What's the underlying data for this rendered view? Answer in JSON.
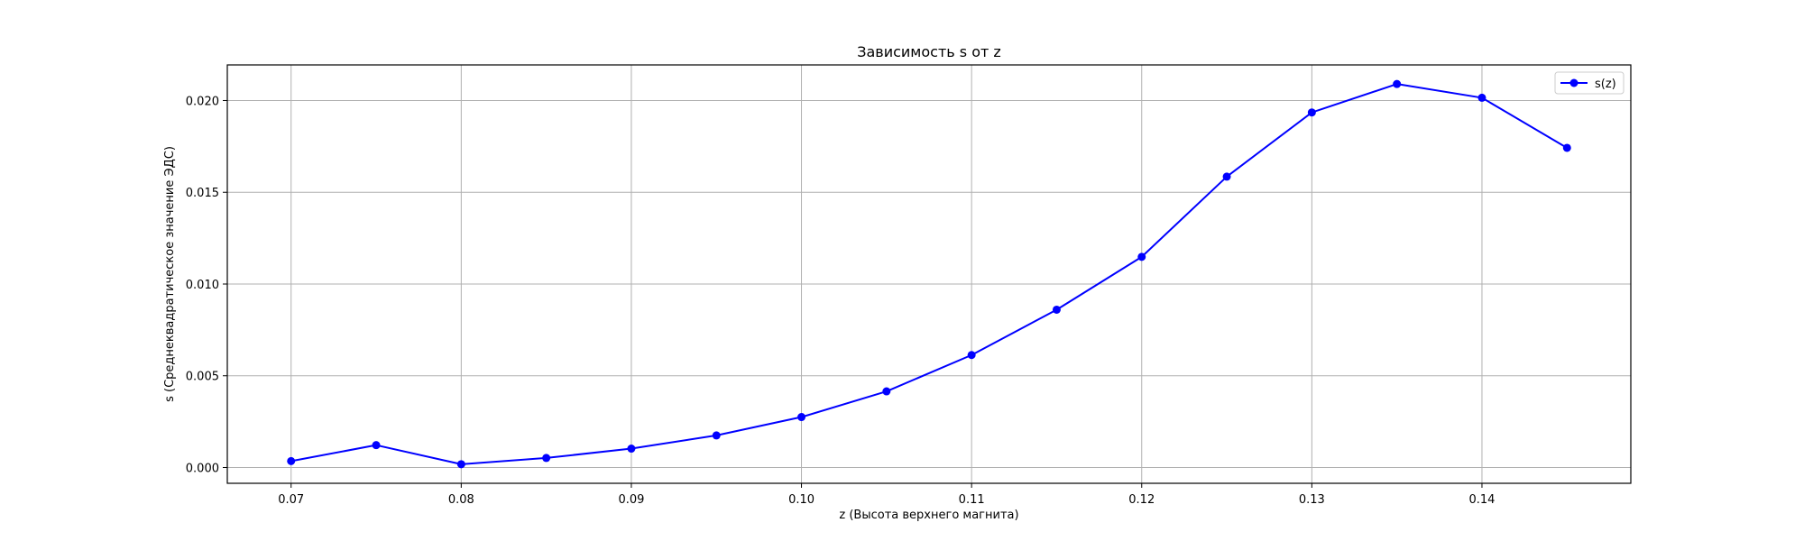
{
  "chart_data": {
    "type": "line",
    "title": "Зависимость s от z",
    "xlabel": "z (Высота верхнего магнита)",
    "ylabel": "s (Среднеквадратическое значение ЭДС)",
    "x": [
      0.07,
      0.075,
      0.08,
      0.085,
      0.09,
      0.095,
      0.1,
      0.105,
      0.11,
      0.115,
      0.12,
      0.125,
      0.13,
      0.135,
      0.14,
      0.145
    ],
    "series": [
      {
        "name": "s(z)",
        "color": "#0000ff",
        "marker": "circle",
        "values": [
          0.00035,
          0.00122,
          0.00018,
          0.00052,
          0.00103,
          0.00175,
          0.00275,
          0.00415,
          0.00613,
          0.0086,
          0.01148,
          0.01585,
          0.01935,
          0.0209,
          0.02015,
          0.01742
        ]
      }
    ],
    "xlim": [
      0.06625,
      0.14875
    ],
    "ylim": [
      -0.00086,
      0.02194
    ],
    "xticks": [
      0.07,
      0.08,
      0.09,
      0.1,
      0.11,
      0.12,
      0.13,
      0.14
    ],
    "xtick_labels": [
      "0.07",
      "0.08",
      "0.09",
      "0.10",
      "0.11",
      "0.12",
      "0.13",
      "0.14"
    ],
    "yticks": [
      0.0,
      0.005,
      0.01,
      0.015,
      0.02
    ],
    "ytick_labels": [
      "0.000",
      "0.005",
      "0.010",
      "0.015",
      "0.020"
    ],
    "grid": true,
    "legend_position": "top-right",
    "grid_color": "#b0b0b0",
    "axes_color": "#000000"
  }
}
